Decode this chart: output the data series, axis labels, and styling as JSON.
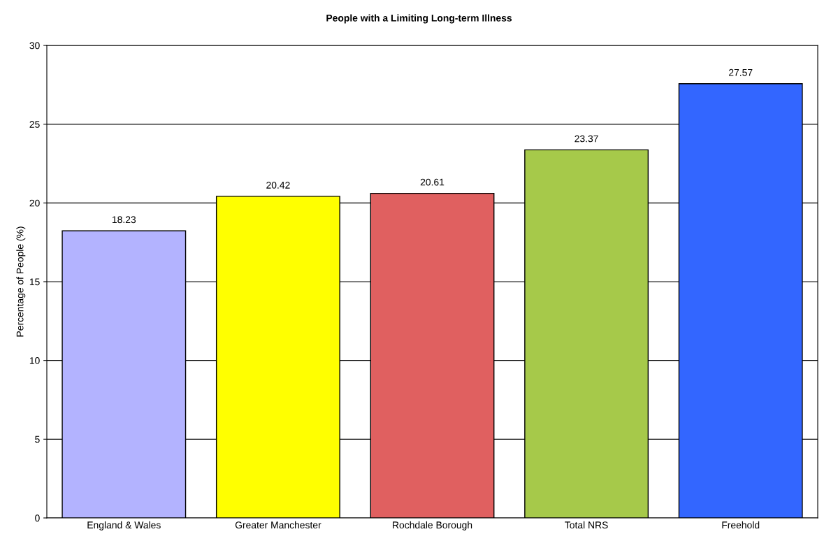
{
  "chart_data": {
    "type": "bar",
    "title": "People with a Limiting Long-term Illness",
    "ylabel": "Percentage of People (%)",
    "categories": [
      "England & Wales",
      "Greater Manchester",
      "Rochdale Borough",
      "Total NRS",
      "Freehold"
    ],
    "values": [
      18.23,
      20.42,
      20.61,
      23.37,
      27.57
    ],
    "colors": [
      "#b3b3ff",
      "#ffff00",
      "#e06060",
      "#a6c94a",
      "#3366ff"
    ],
    "ylim": [
      0,
      30
    ],
    "yticks": [
      0,
      5,
      10,
      15,
      20,
      25,
      30
    ],
    "grid": "y",
    "data_labels": true,
    "legend": false
  }
}
